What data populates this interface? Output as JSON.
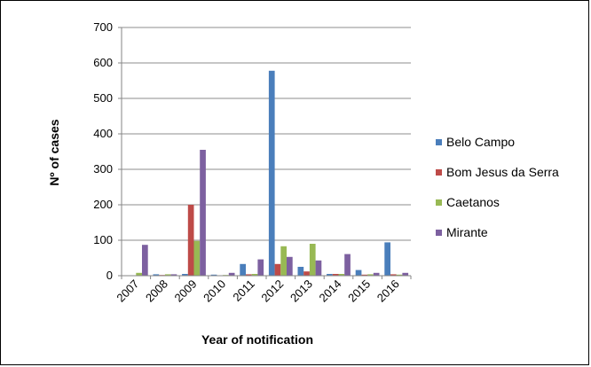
{
  "chart_data": {
    "type": "bar",
    "title": "",
    "xlabel": "Year of notification",
    "ylabel": "Nº of cases",
    "ylim": [
      0,
      700
    ],
    "yticks": [
      0,
      100,
      200,
      300,
      400,
      500,
      600,
      700
    ],
    "grid": true,
    "legend_position": "right",
    "categories": [
      "2007",
      "2008",
      "2009",
      "2010",
      "2011",
      "2012",
      "2013",
      "2014",
      "2015",
      "2016"
    ],
    "series": [
      {
        "name": "Belo Campo",
        "color": "#4a7ebb",
        "values": [
          1,
          4,
          5,
          3,
          33,
          578,
          25,
          5,
          16,
          94
        ]
      },
      {
        "name": "Bom Jesus da Serra",
        "color": "#be4b48",
        "values": [
          1,
          2,
          200,
          1,
          4,
          33,
          12,
          5,
          3,
          4
        ]
      },
      {
        "name": "Caetanos",
        "color": "#98b954",
        "values": [
          8,
          4,
          98,
          2,
          5,
          83,
          90,
          5,
          4,
          3
        ]
      },
      {
        "name": "Mirante",
        "color": "#7d60a0",
        "values": [
          87,
          4,
          355,
          8,
          46,
          53,
          43,
          61,
          8,
          8
        ]
      }
    ]
  }
}
